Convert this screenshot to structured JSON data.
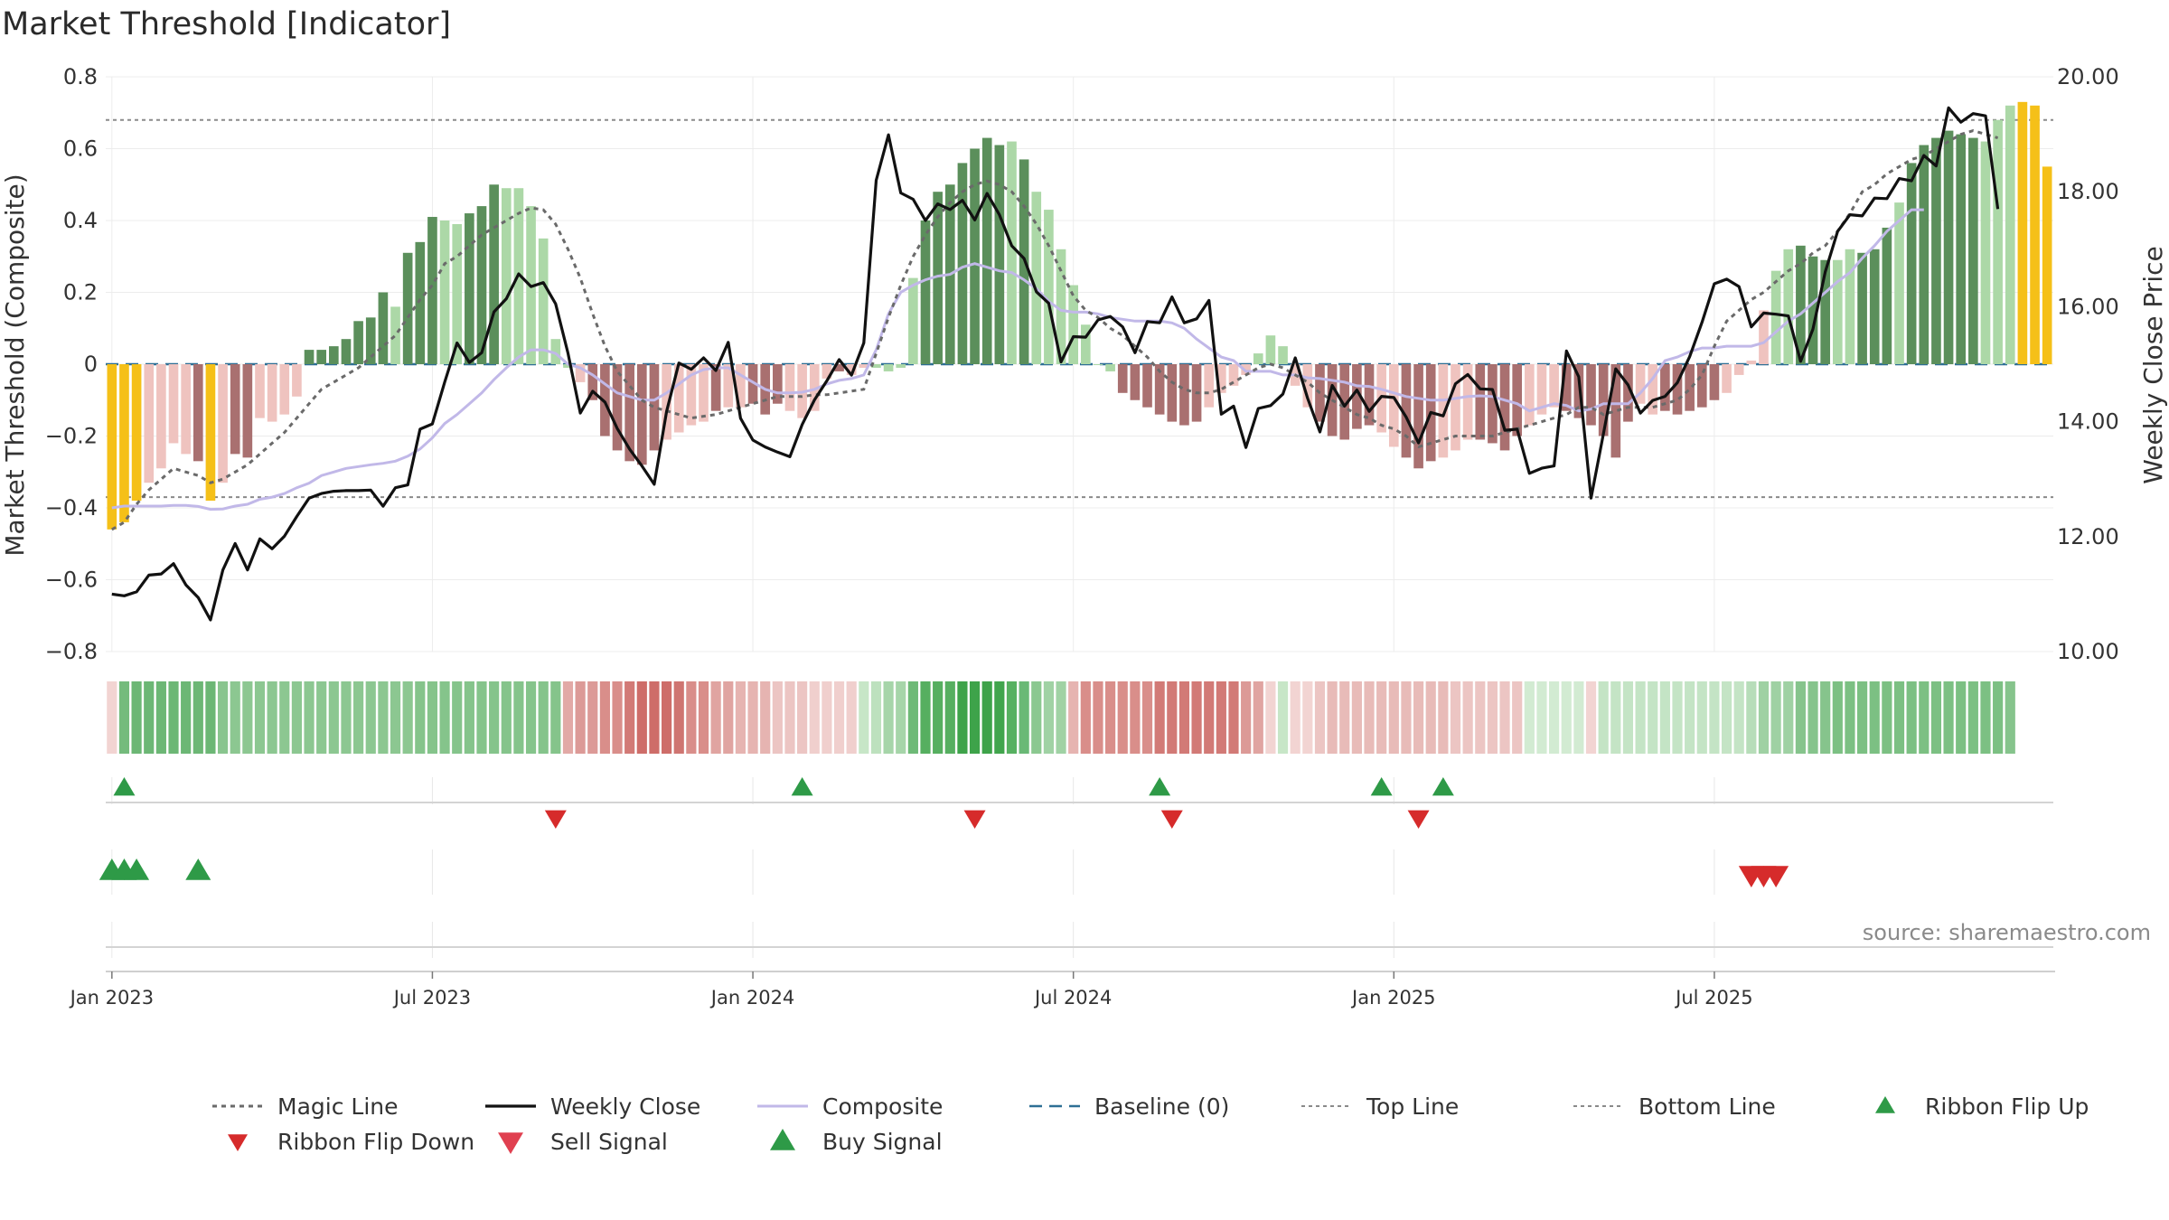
{
  "title": "Market Threshold [Indicator]",
  "source": "source: sharemaestro.com",
  "colors": {
    "bar_green_dark": "#5b8f5b",
    "bar_green_light": "#acd8a7",
    "bar_red_dark": "#a97070",
    "bar_red_light": "#efc3bf",
    "bar_yellow": "#f5c018",
    "close_line": "#111111",
    "composite_line": "#c1b8e8",
    "magic_line": "#6a6a6a",
    "baseline": "#2e6f95",
    "ref_line": "#8a8a8a",
    "signal_up": "#2e9a47",
    "signal_down": "#d62b2b"
  },
  "chart_data": {
    "type": "bar",
    "title": "Market Threshold [Indicator]",
    "ylabel": "Market Threshold (Composite)",
    "y2label": "Weekly Close Price",
    "ylim": [
      -0.8,
      0.8
    ],
    "y2lim": [
      10,
      20
    ],
    "yticks": [
      "0.8",
      "0.6",
      "0.4",
      "0.2",
      "0",
      "−0.2",
      "−0.4",
      "−0.6",
      "−0.8"
    ],
    "y2ticks": [
      "20.00",
      "18.00",
      "16.00",
      "14.00",
      "12.00",
      "10.00"
    ],
    "xticks": [
      {
        "label": "Jan 2023",
        "pos": 0.5
      },
      {
        "label": "Jul 2023",
        "pos": 26.5
      },
      {
        "label": "Jan 2024",
        "pos": 52.5
      },
      {
        "label": "Jul 2024",
        "pos": 78.5
      },
      {
        "label": "Jan 2025",
        "pos": 104.5
      },
      {
        "label": "Jul 2025",
        "pos": 130.5
      }
    ],
    "top_line": 0.68,
    "bottom_line": -0.37,
    "baseline": 0,
    "composite_bars": [
      -0.46,
      -0.44,
      -0.38,
      -0.33,
      -0.29,
      -0.22,
      -0.25,
      -0.27,
      -0.38,
      -0.33,
      -0.25,
      -0.26,
      -0.15,
      -0.16,
      -0.14,
      -0.09,
      0.04,
      0.04,
      0.05,
      0.07,
      0.12,
      0.13,
      0.2,
      0.16,
      0.31,
      0.34,
      0.41,
      0.4,
      0.39,
      0.42,
      0.44,
      0.5,
      0.49,
      0.49,
      0.44,
      0.35,
      0.07,
      -0.01,
      -0.05,
      -0.1,
      -0.2,
      -0.24,
      -0.27,
      -0.28,
      -0.24,
      -0.21,
      -0.19,
      -0.17,
      -0.16,
      -0.13,
      -0.12,
      -0.12,
      -0.11,
      -0.14,
      -0.11,
      -0.13,
      -0.15,
      -0.13,
      -0.04,
      -0.02,
      -0.03,
      -0.01,
      -0.01,
      -0.02,
      -0.01,
      0.24,
      0.4,
      0.48,
      0.5,
      0.56,
      0.6,
      0.63,
      0.61,
      0.62,
      0.57,
      0.48,
      0.43,
      0.32,
      0.22,
      0.11,
      0.0,
      -0.02,
      -0.08,
      -0.1,
      -0.12,
      -0.14,
      -0.16,
      -0.17,
      -0.16,
      -0.12,
      -0.08,
      -0.06,
      -0.03,
      0.03,
      0.08,
      0.05,
      -0.06,
      -0.12,
      -0.16,
      -0.2,
      -0.21,
      -0.18,
      -0.17,
      -0.19,
      -0.23,
      -0.26,
      -0.29,
      -0.27,
      -0.26,
      -0.24,
      -0.21,
      -0.21,
      -0.22,
      -0.24,
      -0.2,
      -0.17,
      -0.14,
      -0.12,
      -0.13,
      -0.15,
      -0.17,
      -0.2,
      -0.26,
      -0.16,
      -0.11,
      -0.14,
      -0.13,
      -0.14,
      -0.13,
      -0.12,
      -0.1,
      -0.08,
      -0.03,
      0.01,
      0.15,
      0.26,
      0.32,
      0.33,
      0.3,
      0.29,
      0.29,
      0.32,
      0.31,
      0.32,
      0.38,
      0.45,
      0.56,
      0.61,
      0.63,
      0.65,
      0.64,
      0.63,
      0.62,
      0.68,
      0.72,
      0.73,
      0.72,
      0.55
    ],
    "bar_colors": [
      "y",
      "y",
      "y",
      "rl",
      "rl",
      "rl",
      "rl",
      "rd",
      "y",
      "rl",
      "rd",
      "rd",
      "rl",
      "rl",
      "rl",
      "rl",
      "gd",
      "gd",
      "gd",
      "gd",
      "gd",
      "gd",
      "gd",
      "gl",
      "gd",
      "gd",
      "gd",
      "gl",
      "gl",
      "gd",
      "gd",
      "gd",
      "gl",
      "gl",
      "gl",
      "gl",
      "gl",
      "gl",
      "rl",
      "rd",
      "rd",
      "rd",
      "rd",
      "rd",
      "rd",
      "rl",
      "rl",
      "rl",
      "rl",
      "rd",
      "rl",
      "rl",
      "rd",
      "rd",
      "rd",
      "rl",
      "rl",
      "rl",
      "rl",
      "rd",
      "rl",
      "rl",
      "gl",
      "gl",
      "gl",
      "gl",
      "gd",
      "gd",
      "gd",
      "gd",
      "gd",
      "gd",
      "gd",
      "gl",
      "gd",
      "gl",
      "gl",
      "gl",
      "gl",
      "gl",
      "gl",
      "gl",
      "rd",
      "rd",
      "rd",
      "rd",
      "rd",
      "rd",
      "rd",
      "rl",
      "rl",
      "rl",
      "rl",
      "gl",
      "gl",
      "gl",
      "rl",
      "rl",
      "rd",
      "rd",
      "rd",
      "rd",
      "rd",
      "rl",
      "rl",
      "rd",
      "rd",
      "rd",
      "rl",
      "rl",
      "rl",
      "rd",
      "rd",
      "rd",
      "rd",
      "rl",
      "rl",
      "rl",
      "rd",
      "rd",
      "rd",
      "rd",
      "rd",
      "rd",
      "rl",
      "rl",
      "rd",
      "rd",
      "rd",
      "rd",
      "rd",
      "rl",
      "rl",
      "rl",
      "rl",
      "gl",
      "gl",
      "gd",
      "gd",
      "gd",
      "gl",
      "gl",
      "gd",
      "gd",
      "gd",
      "gl",
      "gd",
      "gd",
      "gd",
      "gd",
      "gd",
      "gd",
      "gl",
      "gl",
      "gl",
      "y",
      "y",
      "y",
      "y",
      "gl"
    ],
    "weekly_close": [
      11.0,
      10.97,
      11.04,
      11.33,
      11.35,
      11.53,
      11.16,
      10.94,
      10.55,
      11.42,
      11.88,
      11.42,
      11.96,
      11.79,
      12.01,
      12.35,
      12.67,
      12.75,
      12.79,
      12.8,
      12.8,
      12.81,
      12.53,
      12.85,
      12.9,
      13.87,
      13.96,
      14.69,
      15.37,
      15.03,
      15.2,
      15.91,
      16.14,
      16.57,
      16.35,
      16.42,
      16.05,
      15.19,
      14.15,
      14.53,
      14.34,
      13.88,
      13.52,
      13.23,
      12.91,
      14.18,
      15.02,
      14.91,
      15.11,
      14.89,
      15.38,
      14.06,
      13.68,
      13.56,
      13.47,
      13.39,
      13.95,
      14.38,
      14.71,
      15.08,
      14.81,
      15.37,
      18.2,
      18.99,
      17.98,
      17.87,
      17.5,
      17.79,
      17.69,
      17.85,
      17.51,
      17.97,
      17.6,
      17.06,
      16.84,
      16.26,
      16.06,
      15.04,
      15.48,
      15.47,
      15.77,
      15.83,
      15.65,
      15.2,
      15.74,
      15.72,
      16.17,
      15.72,
      15.79,
      16.11,
      14.13,
      14.27,
      13.55,
      14.23,
      14.28,
      14.48,
      15.11,
      14.41,
      13.82,
      14.63,
      14.27,
      14.55,
      14.18,
      14.44,
      14.42,
      14.08,
      13.63,
      14.16,
      14.1,
      14.66,
      14.82,
      14.57,
      14.56,
      13.85,
      13.87,
      13.1,
      13.19,
      13.23,
      15.23,
      14.78,
      12.67,
      13.79,
      14.92,
      14.64,
      14.15,
      14.37,
      14.44,
      14.68,
      15.13,
      15.73,
      16.4,
      16.48,
      16.35,
      15.65,
      15.89,
      15.87,
      15.84,
      15.05,
      15.61,
      16.61,
      17.31,
      17.6,
      17.58,
      17.89,
      17.88,
      18.23,
      18.19,
      18.63,
      18.45,
      19.46,
      19.21,
      19.36,
      19.32,
      17.7
    ],
    "composite_line": [
      -0.4,
      -0.395,
      -0.395,
      -0.395,
      -0.395,
      -0.393,
      -0.393,
      -0.396,
      -0.404,
      -0.403,
      -0.395,
      -0.39,
      -0.376,
      -0.37,
      -0.36,
      -0.344,
      -0.331,
      -0.31,
      -0.3,
      -0.29,
      -0.285,
      -0.28,
      -0.276,
      -0.27,
      -0.256,
      -0.236,
      -0.205,
      -0.165,
      -0.14,
      -0.11,
      -0.08,
      -0.043,
      -0.01,
      0.02,
      0.04,
      0.04,
      0.03,
      0.0,
      -0.01,
      -0.03,
      -0.055,
      -0.08,
      -0.09,
      -0.1,
      -0.1,
      -0.08,
      -0.055,
      -0.03,
      -0.015,
      -0.01,
      -0.01,
      -0.03,
      -0.05,
      -0.07,
      -0.08,
      -0.08,
      -0.078,
      -0.07,
      -0.055,
      -0.045,
      -0.04,
      -0.03,
      0.04,
      0.14,
      0.2,
      0.22,
      0.235,
      0.245,
      0.25,
      0.27,
      0.28,
      0.27,
      0.26,
      0.255,
      0.235,
      0.21,
      0.175,
      0.15,
      0.145,
      0.145,
      0.14,
      0.13,
      0.125,
      0.12,
      0.12,
      0.12,
      0.115,
      0.1,
      0.07,
      0.045,
      0.02,
      0.01,
      -0.02,
      -0.02,
      -0.02,
      -0.03,
      -0.03,
      -0.038,
      -0.04,
      -0.045,
      -0.05,
      -0.06,
      -0.062,
      -0.07,
      -0.08,
      -0.09,
      -0.095,
      -0.1,
      -0.1,
      -0.095,
      -0.09,
      -0.088,
      -0.09,
      -0.1,
      -0.11,
      -0.13,
      -0.12,
      -0.11,
      -0.115,
      -0.13,
      -0.125,
      -0.11,
      -0.11,
      -0.11,
      -0.08,
      -0.04,
      0.01,
      0.02,
      0.035,
      0.045,
      0.045,
      0.05,
      0.05,
      0.05,
      0.06,
      0.09,
      0.12,
      0.14,
      0.17,
      0.2,
      0.23,
      0.255,
      0.295,
      0.33,
      0.37,
      0.4,
      0.43,
      0.43
    ],
    "magic_line": [
      -0.46,
      -0.44,
      -0.39,
      -0.35,
      -0.32,
      -0.29,
      -0.3,
      -0.31,
      -0.33,
      -0.32,
      -0.3,
      -0.28,
      -0.25,
      -0.22,
      -0.19,
      -0.15,
      -0.11,
      -0.07,
      -0.05,
      -0.03,
      -0.01,
      0.02,
      0.05,
      0.08,
      0.13,
      0.18,
      0.22,
      0.28,
      0.3,
      0.33,
      0.36,
      0.38,
      0.4,
      0.42,
      0.435,
      0.43,
      0.39,
      0.32,
      0.24,
      0.14,
      0.05,
      -0.02,
      -0.06,
      -0.1,
      -0.12,
      -0.13,
      -0.14,
      -0.15,
      -0.145,
      -0.14,
      -0.13,
      -0.12,
      -0.11,
      -0.1,
      -0.09,
      -0.09,
      -0.09,
      -0.085,
      -0.085,
      -0.08,
      -0.075,
      -0.07,
      0.03,
      0.13,
      0.22,
      0.3,
      0.36,
      0.41,
      0.45,
      0.48,
      0.5,
      0.51,
      0.5,
      0.48,
      0.44,
      0.39,
      0.33,
      0.26,
      0.19,
      0.15,
      0.13,
      0.1,
      0.08,
      0.05,
      0.02,
      -0.02,
      -0.05,
      -0.07,
      -0.08,
      -0.08,
      -0.07,
      -0.05,
      -0.03,
      -0.01,
      0.0,
      -0.01,
      -0.03,
      -0.05,
      -0.08,
      -0.1,
      -0.12,
      -0.14,
      -0.15,
      -0.17,
      -0.18,
      -0.2,
      -0.23,
      -0.22,
      -0.21,
      -0.2,
      -0.2,
      -0.2,
      -0.2,
      -0.19,
      -0.18,
      -0.17,
      -0.16,
      -0.15,
      -0.14,
      -0.12,
      -0.12,
      -0.14,
      -0.13,
      -0.12,
      -0.12,
      -0.12,
      -0.11,
      -0.1,
      -0.07,
      -0.03,
      0.05,
      0.12,
      0.15,
      0.18,
      0.2,
      0.23,
      0.26,
      0.28,
      0.31,
      0.33,
      0.37,
      0.42,
      0.48,
      0.5,
      0.53,
      0.55,
      0.57,
      0.58,
      0.6,
      0.62,
      0.64,
      0.65,
      0.64,
      0.63
    ],
    "ribbon_colors": [
      "#f2d4d2",
      "#74bb7c",
      "#6cb775",
      "#6cb775",
      "#6cb775",
      "#6cb775",
      "#6cb775",
      "#6cb775",
      "#6cb775",
      "#89c58e",
      "#8cc791",
      "#8cc791",
      "#8cc791",
      "#8cc791",
      "#8cc791",
      "#8cc791",
      "#8cc791",
      "#8cc791",
      "#8cc791",
      "#8cc791",
      "#8cc791",
      "#8cc791",
      "#8cc791",
      "#8cc791",
      "#8cc791",
      "#85c48b",
      "#85c48b",
      "#85c48b",
      "#85c48b",
      "#85c48b",
      "#85c48b",
      "#85c48b",
      "#85c48b",
      "#85c48b",
      "#85c48b",
      "#85c48b",
      "#85c48b",
      "#e2a9a6",
      "#dc9a97",
      "#dc9a97",
      "#d98e8a",
      "#d98e8a",
      "#d27a76",
      "#ce6d69",
      "#ce6d69",
      "#ce6d69",
      "#cf7571",
      "#d98e8a",
      "#d98e8a",
      "#e0a4a1",
      "#e0a4a1",
      "#e6b4b1",
      "#e6b4b1",
      "#e6b4b1",
      "#ecc5c3",
      "#ecc5c3",
      "#ecc5c3",
      "#f0cfcd",
      "#f0cfcd",
      "#f0cfcd",
      "#f0cfcd",
      "#c7e6c7",
      "#bde1be",
      "#a6d5a9",
      "#a6d5a9",
      "#6eba77",
      "#56af60",
      "#56af60",
      "#56af60",
      "#3ea34a",
      "#3ea34a",
      "#3ea34a",
      "#41a54d",
      "#57b161",
      "#6ab976",
      "#8bc890",
      "#a0d2a4",
      "#a0d2a4",
      "#e6b4b1",
      "#d98e8a",
      "#d98e8a",
      "#d98e8a",
      "#d98e8a",
      "#d98e8a",
      "#d98e8a",
      "#d27a76",
      "#d27a76",
      "#d27a76",
      "#d27a76",
      "#d27a76",
      "#d27a76",
      "#d27a76",
      "#dc9a97",
      "#e0a4a1",
      "#f2d4d2",
      "#c7e6c7",
      "#f2d4d2",
      "#f2d4d2",
      "#ecc5c3",
      "#e8bbb8",
      "#e8bbb8",
      "#e8bbb8",
      "#e8bbb8",
      "#e8bbb8",
      "#e8bbb8",
      "#e8bbb8",
      "#e8bbb8",
      "#e8bbb8",
      "#e8bbb8",
      "#ecc5c3",
      "#ecc5c3",
      "#ecc5c3",
      "#ecc5c3",
      "#ecc5c3",
      "#ecc5c3",
      "#d2ebd2",
      "#d2ebd2",
      "#d2ebd2",
      "#d2ebd2",
      "#d2ebd2",
      "#f2d4d2",
      "#c4e4c5",
      "#c4e4c5",
      "#c4e4c5",
      "#c4e4c5",
      "#c4e4c5",
      "#c4e4c5",
      "#c4e4c5",
      "#c4e4c5",
      "#c4e4c5",
      "#c4e4c5",
      "#c4e4c5",
      "#c4e4c5",
      "#b7ddb9",
      "#9fd1a3",
      "#9fd1a3",
      "#9fd1a3",
      "#86c48c",
      "#86c48c",
      "#86c48c",
      "#7cc083",
      "#7cc083",
      "#7cc083",
      "#7cc083",
      "#7cc083",
      "#7cc083",
      "#7cc083",
      "#7cc083",
      "#7cc083",
      "#7cc083",
      "#7cc083",
      "#7cc083",
      "#7cc083",
      "#7cc083",
      "#86c48c"
    ],
    "ribbon_flip_up": [
      1,
      56,
      85,
      103,
      108
    ],
    "ribbon_flip_down": [
      36,
      70,
      86,
      106
    ],
    "buy_signals": [
      0,
      1,
      2,
      7
    ],
    "sell_signals": [
      133,
      134,
      135
    ]
  },
  "legend": [
    {
      "label": "Magic Line",
      "symbol": "dotted-line"
    },
    {
      "label": "Weekly Close",
      "symbol": "solid-line"
    },
    {
      "label": "Composite",
      "symbol": "composite-line"
    },
    {
      "label": "Baseline (0)",
      "symbol": "dashed-line"
    },
    {
      "label": "Top Line",
      "symbol": "ref-line"
    },
    {
      "label": "Bottom Line",
      "symbol": "ref-line"
    },
    {
      "label": "Ribbon Flip Up",
      "symbol": "triangle-up-icon"
    },
    {
      "label": "Ribbon Flip Down",
      "symbol": "triangle-down-icon"
    },
    {
      "label": "Sell Signal",
      "symbol": "triangle-down-icon"
    },
    {
      "label": "Buy Signal",
      "symbol": "triangle-up-icon"
    }
  ]
}
